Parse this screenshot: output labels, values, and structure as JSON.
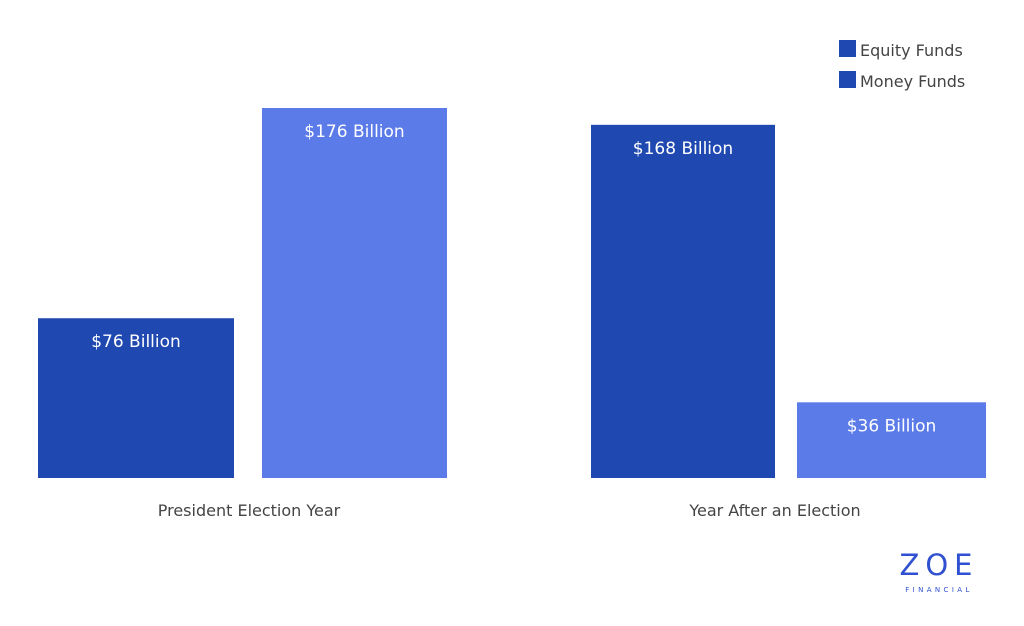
{
  "chart_data": {
    "type": "bar",
    "categories": [
      "President Election Year",
      "Year After an Election"
    ],
    "series": [
      {
        "name": "Equity Funds",
        "color": "#1f48b0",
        "values": [
          76,
          168
        ],
        "labels": [
          "$76  Billion",
          "$168 Billion"
        ]
      },
      {
        "name": "Money Funds",
        "color": "#5b7be8",
        "values": [
          176,
          36
        ],
        "labels": [
          "$176  Billion",
          "$36 Billion"
        ]
      }
    ],
    "ylim": [
      0,
      176
    ],
    "grid": false,
    "legend_position": "top-right"
  },
  "brand": {
    "name": "ZOE",
    "tagline": "FINANCIAL",
    "color": "#2f50d0"
  }
}
